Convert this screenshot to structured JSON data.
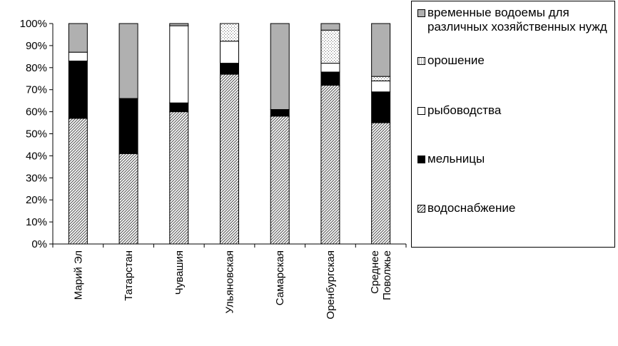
{
  "chart_data": {
    "type": "bar",
    "stacked": true,
    "percent": true,
    "categories": [
      "Марий Эл",
      "Татарстан",
      "Чувашия",
      "Ульяновская",
      "Самарская",
      "Оренбургская",
      [
        "Среднее",
        "Поволжье"
      ]
    ],
    "series": [
      {
        "name": "водоснабжение",
        "fill": "hatch",
        "values": [
          57,
          41,
          60,
          77,
          58,
          72,
          55
        ]
      },
      {
        "name": "мельницы",
        "fill": "#000000",
        "values": [
          26,
          25,
          4,
          5,
          3,
          6,
          14
        ]
      },
      {
        "name": "рыбоводства",
        "fill": "#ffffff",
        "values": [
          4,
          0,
          35,
          10,
          0,
          4,
          5
        ]
      },
      {
        "name": "орошение",
        "fill": "dots",
        "values": [
          0,
          0,
          0,
          8,
          0,
          15,
          2
        ]
      },
      {
        "name": "временные водоемы для различных хозяйственных нужд",
        "fill": "#b0b0b0",
        "values": [
          13,
          34,
          1,
          0,
          39,
          3,
          24
        ]
      }
    ],
    "y_ticks": [
      "0%",
      "10%",
      "20%",
      "30%",
      "40%",
      "50%",
      "60%",
      "70%",
      "80%",
      "90%",
      "100%"
    ],
    "ylim": [
      0,
      100
    ],
    "legend_position": "right",
    "grid": false
  }
}
